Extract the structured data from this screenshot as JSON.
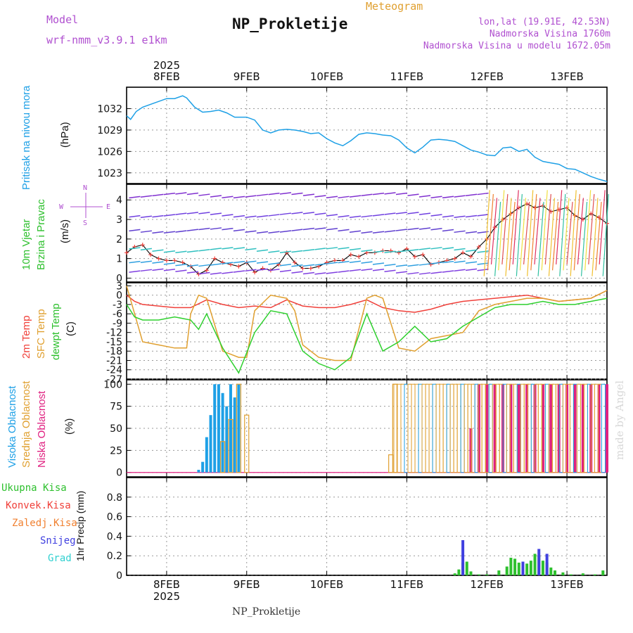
{
  "header": {
    "model_label": "Model",
    "model_name": "wrf-nmm_v3.9.1 e1km",
    "title": "NP_Prokletije",
    "meteogram_label": "Meteogram",
    "coords": "lon,lat (19.91E, 42.53N)",
    "altitude": "Nadmorska Visina 1760m",
    "model_altitude": "Nadmorska Visina u modelu 1672.05m",
    "footer_title": "NP_Prokletije",
    "made_by": "made by Angel"
  },
  "axes": {
    "year": "2025",
    "days": [
      "8FEB",
      "9FEB",
      "10FEB",
      "11FEB",
      "12FEB",
      "13FEB"
    ]
  },
  "colors": {
    "pressure": "#1ea0e6",
    "temp2m": "#f0403a",
    "sfc_temp": "#e0a030",
    "dewpt": "#2ed02e",
    "high_cloud": "#1ea0e6",
    "mid_cloud": "#e0a030",
    "low_cloud": "#e02080",
    "total_precip": "#2ec02e",
    "conv_precip": "#f0403a",
    "frz_precip": "#f08030",
    "snow": "#4040e0",
    "graupel": "#30d0d0",
    "model_label": "#b050d0"
  },
  "panels": {
    "pressure": {
      "label": "Pritisak na nivou mora",
      "unit": "(hPa)"
    },
    "wind": {
      "label1": "10m Vjetar",
      "label2": "Brzina i Pravac",
      "unit": "(m/s)",
      "rose_n": "N",
      "rose_s": "S",
      "rose_w": "W",
      "rose_e": "E"
    },
    "temp": {
      "label1": "2m Temp",
      "label2": "SFC Temp",
      "label3": "dewpt Temp",
      "unit": "(C)"
    },
    "cloud": {
      "label1": "Visoka Oblacnost",
      "label2": "Srednja Oblacnost",
      "label3": "Niska Oblacnost",
      "unit": "(%)"
    },
    "precip": {
      "labels": [
        "Ukupna Kisa",
        "Konvek.Kisa",
        "Zaledj.Kisa",
        "Snijeg",
        "Grad"
      ],
      "unit": "1hr Precip (mm)"
    }
  },
  "chart_data": [
    {
      "type": "line",
      "title": "Pritisak na nivou mora",
      "ylabel": "(hPa)",
      "x_unit": "days since 7FEB 12UTC",
      "xlim": [
        0,
        6
      ],
      "ylim": [
        1021.5,
        1035
      ],
      "yticks": [
        1023,
        1026,
        1029,
        1032
      ],
      "series": [
        {
          "name": "Pritisak na nivou mora",
          "x": [
            0,
            0.05,
            0.12,
            0.2,
            0.35,
            0.5,
            0.6,
            0.7,
            0.75,
            0.85,
            0.95,
            1.05,
            1.15,
            1.25,
            1.35,
            1.5,
            1.6,
            1.7,
            1.8,
            1.9,
            2.0,
            2.1,
            2.2,
            2.3,
            2.4,
            2.5,
            2.6,
            2.7,
            2.8,
            2.9,
            3.0,
            3.1,
            3.2,
            3.3,
            3.4,
            3.5,
            3.6,
            3.7,
            3.8,
            3.9,
            4.0,
            4.1,
            4.2,
            4.3,
            4.4,
            4.5,
            4.6,
            4.7,
            4.8,
            4.9,
            5.0,
            5.1,
            5.2,
            5.3,
            5.4,
            5.5,
            5.6,
            5.7,
            5.8,
            5.9,
            6.0
          ],
          "values": [
            1031,
            1030.5,
            1031.6,
            1032.2,
            1032.8,
            1033.4,
            1033.4,
            1033.8,
            1033.5,
            1032.2,
            1031.5,
            1031.6,
            1031.8,
            1031.4,
            1030.8,
            1030.8,
            1030.4,
            1029.0,
            1028.6,
            1029.0,
            1029.1,
            1029.0,
            1028.8,
            1028.5,
            1028.6,
            1027.8,
            1027.2,
            1026.8,
            1027.5,
            1028.4,
            1028.6,
            1028.5,
            1028.3,
            1028.2,
            1027.6,
            1026.5,
            1025.8,
            1026.6,
            1027.6,
            1027.7,
            1027.6,
            1027.4,
            1026.8,
            1026.2,
            1025.9,
            1025.5,
            1025.4,
            1026.5,
            1026.6,
            1026.0,
            1026.3,
            1025.2,
            1024.6,
            1024.4,
            1024.2,
            1023.6,
            1023.5,
            1023.0,
            1022.5,
            1022.1,
            1021.8
          ]
        }
      ]
    },
    {
      "type": "scatter",
      "title": "10m Vjetar Brzina i Pravac",
      "ylabel": "(m/s)",
      "x_unit": "days since 7FEB 12UTC",
      "xlim": [
        0,
        6
      ],
      "ylim": [
        -0.2,
        4.8
      ],
      "yticks": [
        0,
        1,
        2,
        3,
        4
      ],
      "series": [
        {
          "name": "speed",
          "x": [
            0,
            0.1,
            0.2,
            0.3,
            0.4,
            0.5,
            0.6,
            0.7,
            0.8,
            0.9,
            1.0,
            1.1,
            1.2,
            1.3,
            1.4,
            1.5,
            1.6,
            1.7,
            1.8,
            1.9,
            2.0,
            2.1,
            2.2,
            2.3,
            2.4,
            2.5,
            2.6,
            2.7,
            2.8,
            2.9,
            3.0,
            3.1,
            3.2,
            3.3,
            3.4,
            3.5,
            3.6,
            3.7,
            3.8,
            3.9,
            4.0,
            4.1,
            4.2,
            4.3,
            4.4,
            4.5,
            4.6,
            4.7,
            4.8,
            4.9,
            5.0,
            5.1,
            5.2,
            5.3,
            5.4,
            5.5,
            5.6,
            5.7,
            5.8,
            5.9,
            6.0
          ],
          "values": [
            1.3,
            1.6,
            1.7,
            1.2,
            1.0,
            0.9,
            0.9,
            0.8,
            0.6,
            0.2,
            0.4,
            1.0,
            0.8,
            0.7,
            0.6,
            0.8,
            0.3,
            0.5,
            0.4,
            0.7,
            1.3,
            0.8,
            0.5,
            0.5,
            0.6,
            0.8,
            0.9,
            0.9,
            1.2,
            1.1,
            1.3,
            1.3,
            1.4,
            1.4,
            1.3,
            1.5,
            1.1,
            1.2,
            0.7,
            0.8,
            0.9,
            1.0,
            1.3,
            1.1,
            1.6,
            2.0,
            2.6,
            3.0,
            3.3,
            3.6,
            3.8,
            3.6,
            3.7,
            3.4,
            3.5,
            3.6,
            3.2,
            3.0,
            3.3,
            3.1,
            2.8
          ]
        }
      ]
    },
    {
      "type": "line",
      "title": "2m Temp / SFC Temp / dewpt Temp",
      "ylabel": "(C)",
      "x_unit": "days since 7FEB 12UTC",
      "xlim": [
        0,
        6
      ],
      "ylim": [
        -27,
        4
      ],
      "yticks": [
        3,
        0,
        -3,
        -6,
        -9,
        -12,
        -15,
        -18,
        -21,
        -24,
        -27
      ],
      "series": [
        {
          "name": "2m Temp",
          "x": [
            0,
            0.1,
            0.2,
            0.4,
            0.6,
            0.8,
            1.0,
            1.2,
            1.4,
            1.6,
            1.8,
            2.0,
            2.2,
            2.4,
            2.6,
            2.8,
            3.0,
            3.2,
            3.4,
            3.6,
            3.8,
            4.0,
            4.2,
            4.4,
            4.6,
            4.8,
            5.0,
            5.2,
            5.4,
            5.6,
            5.8,
            6.0
          ],
          "values": [
            0,
            -2,
            -3,
            -3.5,
            -4,
            -4,
            -1.5,
            -3,
            -4,
            -3.5,
            -4,
            -1.5,
            -3.5,
            -4,
            -4,
            -3,
            -1.5,
            -4,
            -5,
            -5.5,
            -4.5,
            -3,
            -2,
            -1.5,
            -1,
            -0.5,
            0,
            -1,
            -2,
            -1.5,
            -1,
            1.5
          ]
        },
        {
          "name": "SFC Temp",
          "x": [
            0,
            0.1,
            0.2,
            0.4,
            0.6,
            0.75,
            0.8,
            0.9,
            1.0,
            1.2,
            1.4,
            1.5,
            1.6,
            1.8,
            2.0,
            2.1,
            2.2,
            2.4,
            2.6,
            2.8,
            3.0,
            3.1,
            3.2,
            3.4,
            3.6,
            3.8,
            4.0,
            4.2,
            4.4,
            4.6,
            4.8,
            5.0,
            5.2,
            5.4,
            5.6,
            5.8,
            6.0
          ],
          "values": [
            3,
            -6,
            -15,
            -16,
            -17,
            -17,
            -6,
            0,
            -1,
            -18,
            -20,
            -20,
            -5,
            0,
            -1,
            -5,
            -16,
            -20,
            -21,
            -21,
            -1,
            0,
            -1,
            -17,
            -18,
            -14,
            -13,
            -12,
            -5,
            -3,
            -2,
            -1,
            -1,
            -2,
            -1.5,
            -1,
            1.5
          ]
        },
        {
          "name": "dewpt Temp",
          "x": [
            0,
            0.1,
            0.2,
            0.4,
            0.6,
            0.8,
            0.9,
            1.0,
            1.2,
            1.4,
            1.6,
            1.8,
            2.0,
            2.2,
            2.4,
            2.6,
            2.8,
            3.0,
            3.2,
            3.4,
            3.6,
            3.8,
            4.0,
            4.2,
            4.4,
            4.6,
            4.8,
            5.0,
            5.2,
            5.4,
            5.6,
            5.8,
            6.0
          ],
          "values": [
            -3,
            -7,
            -8,
            -8,
            -7,
            -8,
            -11,
            -6,
            -17,
            -25,
            -12,
            -5,
            -6,
            -18,
            -22,
            -24,
            -20,
            -6,
            -18,
            -15,
            -10,
            -15,
            -14,
            -10,
            -7,
            -4,
            -3,
            -3,
            -2,
            -3,
            -3,
            -2,
            -1
          ]
        }
      ]
    },
    {
      "type": "bar",
      "title": "Visoka / Srednja / Niska Oblacnost",
      "ylabel": "(%)",
      "x_unit": "days since 7FEB 12UTC",
      "xlim": [
        0,
        6
      ],
      "ylim": [
        -5,
        105
      ],
      "yticks": [
        0,
        25,
        50,
        75,
        100
      ],
      "series": [
        {
          "name": "Visoka Oblacnost",
          "x": [
            0.9,
            0.95,
            1.0,
            1.05,
            1.1,
            1.15,
            1.2,
            1.25,
            1.3,
            1.35,
            1.4
          ],
          "values": [
            3,
            12,
            40,
            65,
            100,
            100,
            90,
            75,
            100,
            85,
            100
          ]
        },
        {
          "name": "Srednja Oblacnost",
          "x": [
            1.2,
            1.3,
            1.4,
            1.5,
            3.3,
            3.35
          ],
          "values": [
            35,
            60,
            100,
            65,
            20,
            100
          ]
        },
        {
          "name": "Niska Oblacnost",
          "x": [
            4.3,
            4.4,
            4.5,
            4.6,
            4.7,
            4.8,
            4.9,
            5.0,
            5.1,
            5.2,
            5.3,
            5.4,
            5.5,
            5.6,
            5.7,
            5.8,
            5.9,
            6.0
          ],
          "values": [
            50,
            100,
            100,
            100,
            100,
            100,
            100,
            100,
            100,
            100,
            100,
            100,
            100,
            100,
            100,
            100,
            100,
            100
          ]
        }
      ]
    },
    {
      "type": "bar",
      "title": "1hr Precip",
      "ylabel": "1hr Precip (mm)",
      "x_unit": "days since 7FEB 12UTC",
      "xlim": [
        0,
        6
      ],
      "ylim": [
        0,
        1.0
      ],
      "yticks": [
        0,
        0.2,
        0.4,
        0.6,
        0.8
      ],
      "series": [
        {
          "name": "Ukupna Kisa",
          "x": [
            4.1,
            4.15,
            4.2,
            4.25,
            4.3,
            4.4,
            4.5,
            4.65,
            4.75,
            4.8,
            4.85,
            4.9,
            5.0,
            5.05,
            5.1,
            5.15,
            5.2,
            5.25,
            5.3,
            5.35,
            5.45,
            5.55,
            5.7,
            5.85,
            5.95
          ],
          "values": [
            0.02,
            0.06,
            0.13,
            0.14,
            0.04,
            0.01,
            0.01,
            0.05,
            0.09,
            0.18,
            0.17,
            0.13,
            0.12,
            0.15,
            0.22,
            0.2,
            0.15,
            0.13,
            0.08,
            0.05,
            0.03,
            0.01,
            0.02,
            0.01,
            0.05
          ]
        },
        {
          "name": "Snijeg",
          "x": [
            4.2,
            4.95,
            5.15,
            5.25
          ],
          "values": [
            0.36,
            0.14,
            0.27,
            0.22
          ]
        }
      ]
    }
  ]
}
